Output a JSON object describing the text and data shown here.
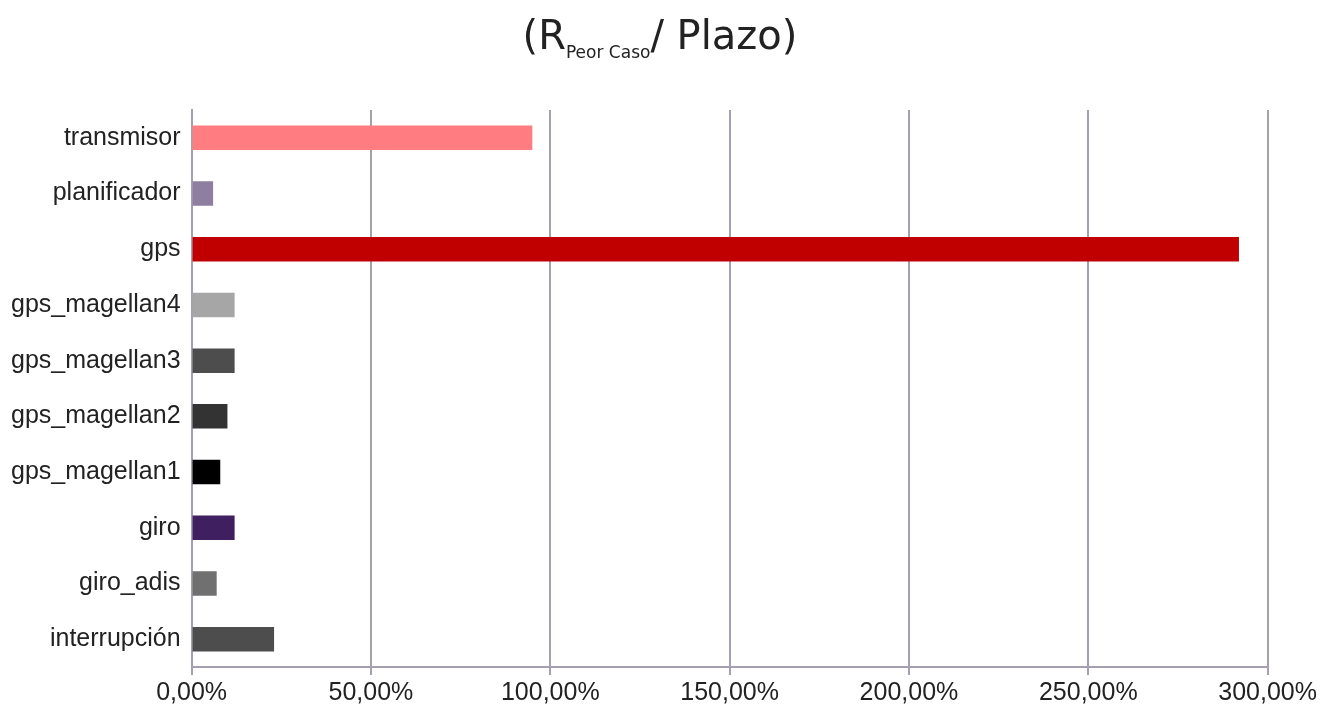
{
  "chart_data": {
    "type": "bar",
    "orientation": "horizontal",
    "title": "(R$_{Peor Caso}$/ Plazo)",
    "categories": [
      "transmisor",
      "planificador",
      "gps",
      "gps_magellan4",
      "gps_magellan3",
      "gps_magellan2",
      "gps_magellan1",
      "giro",
      "giro_adis",
      "interrupción"
    ],
    "values": [
      95,
      6,
      292,
      12,
      12,
      10,
      8,
      12,
      7,
      23
    ],
    "colors": [
      "#ff7c80",
      "#8e7fa0",
      "#c00000",
      "#a6a6a6",
      "#4d4d4d",
      "#333333",
      "#000000",
      "#3f1f5f",
      "#707070",
      "#4d4d4d"
    ],
    "xlim": [
      0,
      300
    ],
    "xticks": [
      {
        "value": 0,
        "label": "0,00%"
      },
      {
        "value": 50,
        "label": "50,00%"
      },
      {
        "value": 100,
        "label": "100,00%"
      },
      {
        "value": 150,
        "label": "150,00%"
      },
      {
        "value": 200,
        "label": "200,00%"
      },
      {
        "value": 250,
        "label": "250,00%"
      },
      {
        "value": 300,
        "label": "300,00%"
      }
    ],
    "grid": "x",
    "legend": false
  }
}
